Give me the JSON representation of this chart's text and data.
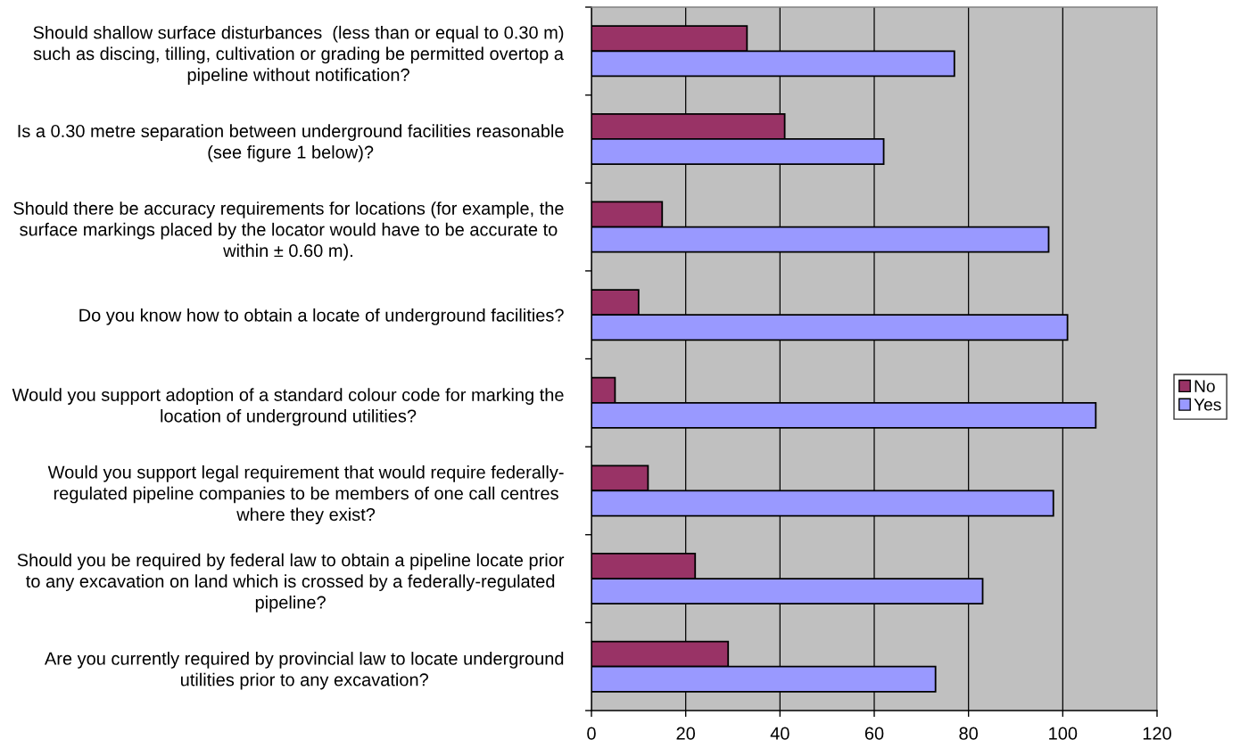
{
  "chart_data": {
    "type": "bar",
    "orientation": "horizontal",
    "categories": [
      "Should shallow surface disturbances  (less than or equal to 0.30 m)\nsuch as discing, tilling, cultivation or grading be permitted overtop a\npipeline without notification?",
      "Is a 0.30 metre separation between underground facilities reasonable\n(see figure 1 below)?",
      "Should there be accuracy requirements for locations (for example, the\nsurface markings placed by the locator would have to be accurate to\nwithin ± 0.60 m).",
      "Do you know how to obtain a locate of underground facilities?",
      "Would you support adoption of a standard colour code for marking the\nlocation of underground utilities?",
      "Would you support legal requirement that would require federally-\nregulated pipeline companies to be members of one call centres\nwhere they exist?",
      "Should you be required by federal law to obtain a pipeline locate prior\nto any excavation on land which is crossed by a federally-regulated\npipeline?",
      "Are you currently required by provincial law to locate underground\nutilities prior to any excavation?"
    ],
    "series": [
      {
        "name": "No",
        "color": "#993366",
        "values": [
          33,
          41,
          15,
          10,
          5,
          12,
          22,
          29
        ]
      },
      {
        "name": "Yes",
        "color": "#9999ff",
        "values": [
          77,
          62,
          97,
          101,
          107,
          98,
          83,
          73
        ]
      }
    ],
    "xlim": [
      0,
      120
    ],
    "xticks": [
      0,
      20,
      40,
      60,
      80,
      100,
      120
    ],
    "grid": "x",
    "legend": "right"
  }
}
